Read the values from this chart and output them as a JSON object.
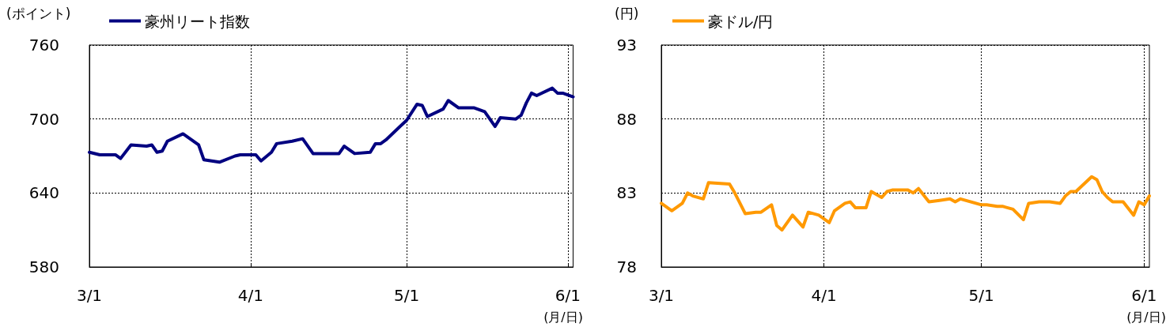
{
  "chart_data": [
    {
      "type": "line",
      "ylabel": "(ポイント)",
      "xlabel": "(月/日)",
      "legend": "top left",
      "grid": true,
      "marker": "none",
      "line_style": "solid",
      "xlim": [
        "--03-01",
        "--06-02"
      ],
      "xticks": [
        {
          "value": "--03-01",
          "label": "3/1"
        },
        {
          "value": "--04-01",
          "label": "4/1"
        },
        {
          "value": "--05-01",
          "label": "5/1"
        },
        {
          "value": "--06-01",
          "label": "6/1"
        }
      ],
      "ylim": [
        580,
        760
      ],
      "yticks": [
        580,
        640,
        700,
        760
      ],
      "series": [
        {
          "name": "豪州リート指数",
          "color": "#000080",
          "x": [
            "--03-01",
            "--03-03",
            "--03-06",
            "--03-07",
            "--03-09",
            "--03-12",
            "--03-13",
            "--03-14",
            "--03-15",
            "--03-16",
            "--03-19",
            "--03-22",
            "--03-23",
            "--03-26",
            "--03-29",
            "--03-30",
            "--04-02",
            "--04-03",
            "--04-05",
            "--04-06",
            "--04-09",
            "--04-11",
            "--04-13",
            "--04-14",
            "--04-18",
            "--04-19",
            "--04-21",
            "--04-24",
            "--04-25",
            "--04-26",
            "--04-27",
            "--05-01",
            "--05-03",
            "--05-04",
            "--05-05",
            "--05-08",
            "--05-09",
            "--05-11",
            "--05-14",
            "--05-16",
            "--05-18",
            "--05-19",
            "--05-22",
            "--05-23",
            "--05-24",
            "--05-25",
            "--05-26",
            "--05-29",
            "--05-30",
            "--05-31",
            "--06-02"
          ],
          "values": [
            673,
            671,
            671,
            668,
            679,
            678,
            679,
            673,
            674,
            682,
            688,
            679,
            667,
            665,
            670,
            671,
            671,
            666,
            673,
            680,
            682,
            684,
            672,
            672,
            672,
            678,
            672,
            673,
            680,
            680,
            683,
            699,
            712,
            711,
            702,
            708,
            715,
            709,
            709,
            706,
            694,
            701,
            700,
            703,
            713,
            721,
            719,
            725,
            721,
            721,
            718
          ]
        }
      ]
    },
    {
      "type": "line",
      "ylabel": "(円)",
      "xlabel": "(月/日)",
      "legend": "top left",
      "grid": true,
      "marker": "none",
      "line_style": "solid",
      "xlim": [
        "--03-01",
        "--06-02"
      ],
      "xticks": [
        {
          "value": "--03-01",
          "label": "3/1"
        },
        {
          "value": "--04-01",
          "label": "4/1"
        },
        {
          "value": "--05-01",
          "label": "5/1"
        },
        {
          "value": "--06-01",
          "label": "6/1"
        }
      ],
      "ylim": [
        78,
        93
      ],
      "yticks": [
        78,
        83,
        88,
        93
      ],
      "series": [
        {
          "name": "豪ドル/円",
          "color": "#ff9900",
          "x": [
            "--03-01",
            "--03-03",
            "--03-05",
            "--03-06",
            "--03-07",
            "--03-09",
            "--03-10",
            "--03-14",
            "--03-15",
            "--03-17",
            "--03-19",
            "--03-20",
            "--03-22",
            "--03-23",
            "--03-24",
            "--03-26",
            "--03-28",
            "--03-29",
            "--03-31",
            "--04-02",
            "--04-03",
            "--04-05",
            "--04-06",
            "--04-07",
            "--04-09",
            "--04-10",
            "--04-12",
            "--04-13",
            "--04-14",
            "--04-17",
            "--04-18",
            "--04-19",
            "--04-21",
            "--04-23",
            "--04-25",
            "--04-26",
            "--04-27",
            "--05-01",
            "--05-02",
            "--05-04",
            "--05-05",
            "--05-07",
            "--05-09",
            "--05-10",
            "--05-12",
            "--05-14",
            "--05-16",
            "--05-17",
            "--05-18",
            "--05-19",
            "--05-22",
            "--05-23",
            "--05-24",
            "--05-25",
            "--05-26",
            "--05-28",
            "--05-30",
            "--05-31",
            "--06-01",
            "--06-02"
          ],
          "values": [
            82.3,
            81.8,
            82.3,
            83.0,
            82.8,
            82.6,
            83.7,
            83.6,
            83.0,
            81.6,
            81.7,
            81.7,
            82.2,
            80.8,
            80.5,
            81.5,
            80.7,
            81.7,
            81.5,
            81.0,
            81.8,
            82.3,
            82.4,
            82.0,
            82.0,
            83.1,
            82.7,
            83.1,
            83.2,
            83.2,
            83.0,
            83.3,
            82.4,
            82.5,
            82.6,
            82.4,
            82.6,
            82.2,
            82.2,
            82.1,
            82.1,
            81.9,
            81.2,
            82.3,
            82.4,
            82.4,
            82.3,
            82.8,
            83.1,
            83.1,
            84.1,
            83.9,
            83.1,
            82.7,
            82.4,
            82.4,
            81.5,
            82.4,
            82.2,
            82.8
          ]
        }
      ]
    }
  ]
}
